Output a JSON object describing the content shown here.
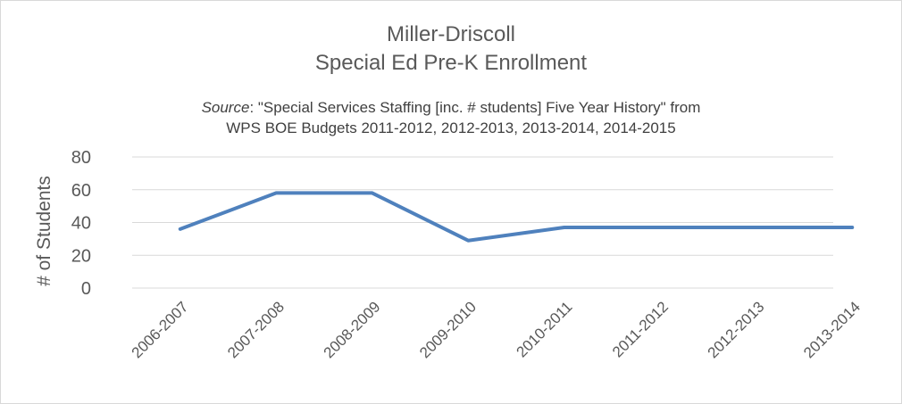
{
  "chart_data": {
    "type": "line",
    "title": [
      "Miller-Driscoll",
      "Special Ed Pre-K Enrollment"
    ],
    "subtitle": {
      "prefix": "Source",
      "line1": ": \"Special Services Staffing [inc. # students] Five Year History\" from",
      "line2": "WPS BOE Budgets 2011-2012, 2012-2013, 2013-2014, 2014-2015"
    },
    "xlabel": "",
    "ylabel": "# of Students",
    "categories": [
      "2006-2007",
      "2007-2008",
      "2008-2009",
      "2009-2010",
      "2010-2011",
      "2011-2012",
      "2012-2013",
      "2013-2014"
    ],
    "series": [
      {
        "values": [
          36,
          58,
          58,
          29,
          37,
          37,
          37,
          37
        ],
        "color": "#4f81bd"
      }
    ],
    "ylim": [
      0,
      80
    ],
    "yticks": [
      0,
      20,
      40,
      60,
      80
    ],
    "grid": true,
    "legend": "none"
  }
}
